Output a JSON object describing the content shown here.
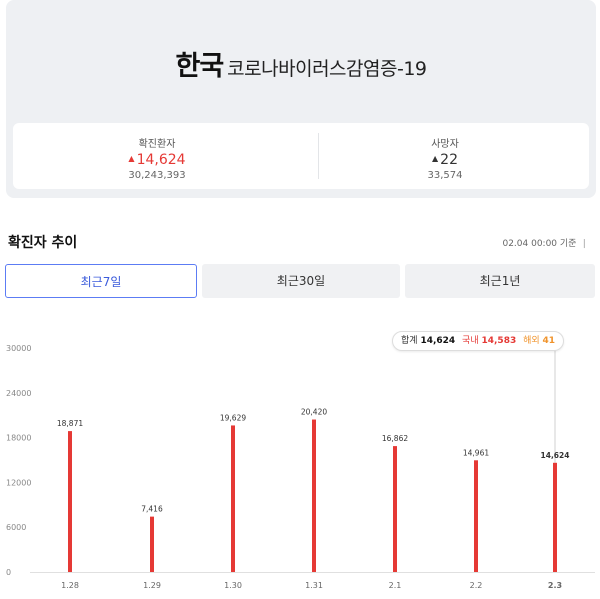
{
  "header": {
    "title_main": "한국",
    "title_sub": "코로나바이러스감염증-19"
  },
  "stats": [
    {
      "label": "확진환자",
      "delta": "14,624",
      "total": "30,243,393",
      "trend": "up"
    },
    {
      "label": "사망자",
      "delta": "22",
      "total": "33,574",
      "trend": "up"
    }
  ],
  "section": {
    "title": "확진자 추이",
    "updated": "02.04 00:00 기준",
    "info_icon": "info-icon"
  },
  "tabs": [
    {
      "label": "최근7일",
      "active": true
    },
    {
      "label": "최근30일",
      "active": false
    },
    {
      "label": "최근1년",
      "active": false
    }
  ],
  "tooltip": {
    "total_label": "합계",
    "total_value": "14,624",
    "domestic_label": "국내",
    "domestic_value": "14,583",
    "overseas_label": "해외",
    "overseas_value": "41"
  },
  "colors": {
    "bar": "#e53935",
    "accent": "#3b5bdb",
    "overseas": "#f0932b"
  },
  "chart_data": {
    "type": "bar",
    "categories": [
      "1.28",
      "1.29",
      "1.30",
      "1.31",
      "2.1",
      "2.2",
      "2.3"
    ],
    "values": [
      18871,
      7416,
      19629,
      20420,
      16862,
      14961,
      14624
    ],
    "value_labels": [
      "18,871",
      "7,416",
      "19,629",
      "20,420",
      "16,862",
      "14,961",
      "14,624"
    ],
    "yticks": [
      "0",
      "6000",
      "12000",
      "18000",
      "24000",
      "30000"
    ],
    "ylim": [
      0,
      30000
    ],
    "highlight_index": 6,
    "grid": false
  }
}
